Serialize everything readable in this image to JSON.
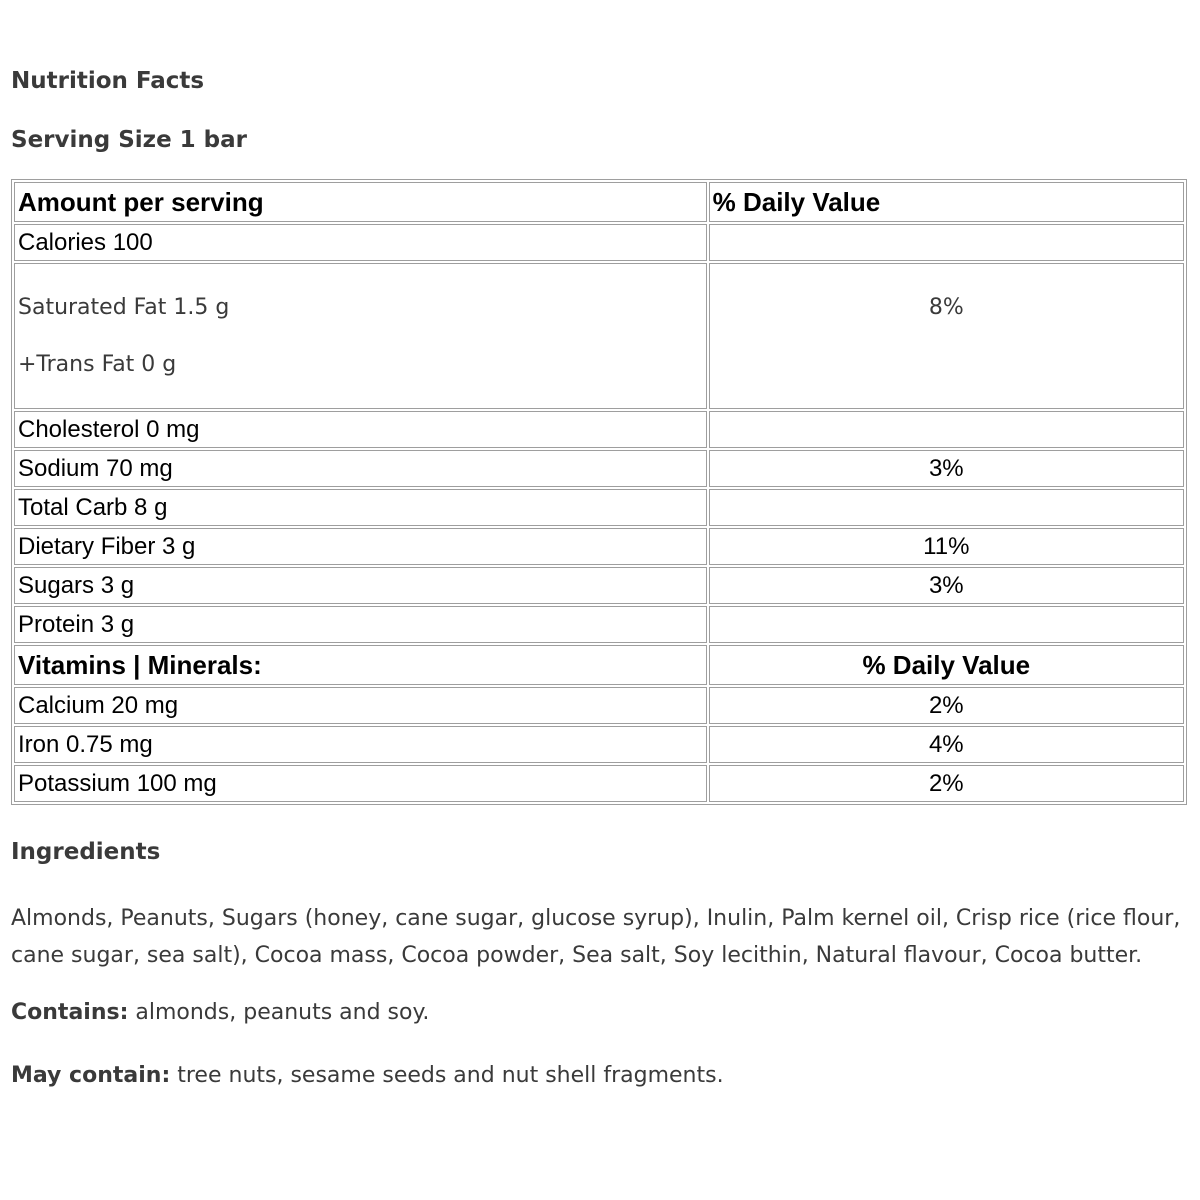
{
  "page": {
    "title": "Nutrition Facts",
    "serving_size": "Serving Size 1 bar"
  },
  "colors": {
    "body_text": "#3a3a3a",
    "table_text": "#000000",
    "table_border": "#9e9e9e",
    "background": "#ffffff"
  },
  "table": {
    "header": {
      "amount": "Amount per serving",
      "daily_value": "% Daily Value"
    },
    "rows": [
      {
        "name": "Calories 100",
        "dv": ""
      },
      {
        "lines": [
          "Saturated Fat 1.5 g",
          "+Trans Fat 0 g"
        ],
        "dv": "8%"
      },
      {
        "name": "Cholesterol 0 mg",
        "dv": ""
      },
      {
        "name": "Sodium 70 mg",
        "dv": "3%"
      },
      {
        "name": "Total Carb 8 g",
        "dv": ""
      },
      {
        "name": "Dietary Fiber 3 g",
        "dv": "11%"
      },
      {
        "name": "Sugars 3 g",
        "dv": "3%"
      },
      {
        "name": "Protein 3 g",
        "dv": ""
      },
      {
        "section": true,
        "name": "Vitamins | Minerals:",
        "dv": "% Daily Value"
      },
      {
        "name": "Calcium 20 mg",
        "dv": "2%"
      },
      {
        "name": "Iron 0.75 mg",
        "dv": "4%"
      },
      {
        "name": "Potassium 100 mg",
        "dv": "2%"
      }
    ]
  },
  "ingredients": {
    "heading": "Ingredients",
    "text": "Almonds, Peanuts, Sugars (honey, cane sugar, glucose syrup), Inulin, Palm kernel oil, Crisp rice (rice flour, cane sugar, sea salt), Cocoa mass, Cocoa powder, Sea salt, Soy lecithin, Natural flavour, Cocoa butter."
  },
  "contains": {
    "label": "Contains:",
    "text": " almonds, peanuts and soy."
  },
  "may_contain": {
    "label": "May contain:",
    "text": " tree nuts, sesame seeds and nut shell fragments."
  }
}
